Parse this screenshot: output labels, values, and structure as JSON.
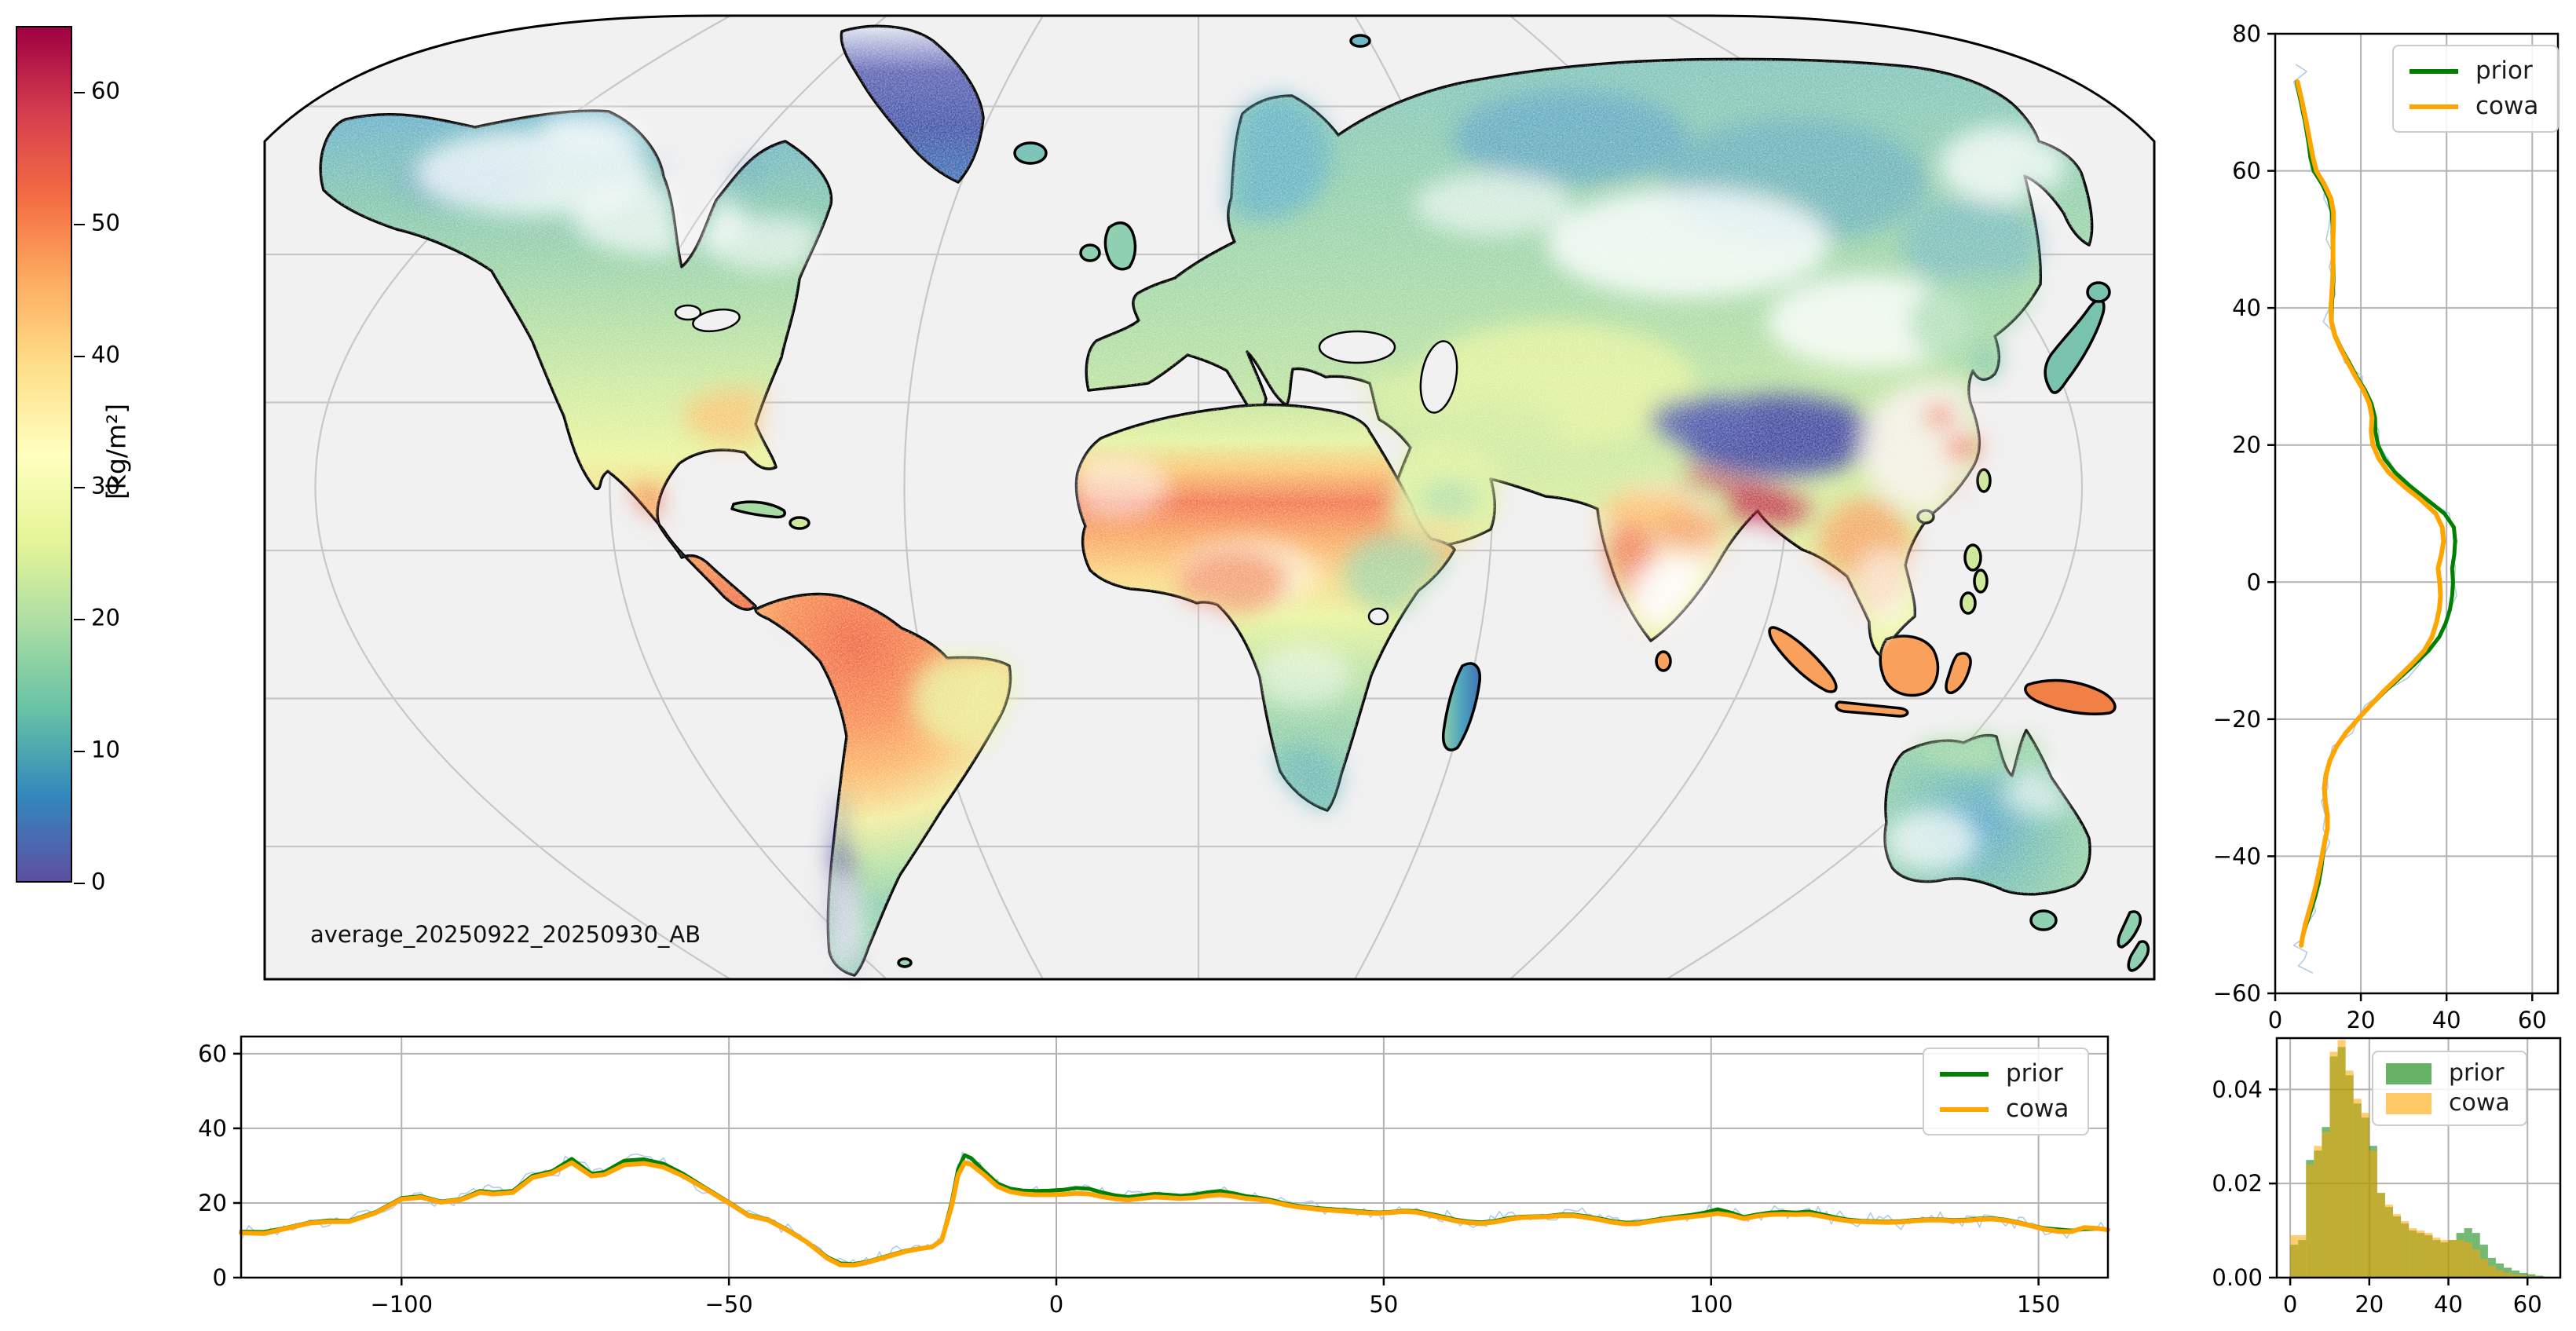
{
  "figure": {
    "background": "#ffffff"
  },
  "colors": {
    "prior": "#008000",
    "cowa": "#ffa500",
    "raw_overlay_line": "#a9c6e2",
    "grid": "#b2b2b2",
    "graticule": "#c7c7c7",
    "map_ocean": "#f1f1f1",
    "spine": "#000000",
    "legend_border": "#cccccc",
    "coastline": "#000000"
  },
  "colorbar": {
    "unit_label": "[kg/m²]",
    "vmin": 0,
    "vmax": 65,
    "ticks": [
      0,
      10,
      20,
      30,
      40,
      50,
      60
    ],
    "stops": [
      [
        0.0,
        "#5e4fa2"
      ],
      [
        0.1,
        "#3288bd"
      ],
      [
        0.2,
        "#66c2a5"
      ],
      [
        0.3,
        "#abdda4"
      ],
      [
        0.4,
        "#e6f598"
      ],
      [
        0.5,
        "#ffffbf"
      ],
      [
        0.6,
        "#fee08b"
      ],
      [
        0.7,
        "#fdae61"
      ],
      [
        0.8,
        "#f46d43"
      ],
      [
        0.9,
        "#d53e4f"
      ],
      [
        1.0,
        "#9e0142"
      ]
    ]
  },
  "map": {
    "annotation": "average_20250922_20250930_AB"
  },
  "chart_data": [
    {
      "id": "map",
      "type": "heatmap",
      "title": "",
      "description_visible_text": "average_20250922_20250930_AB",
      "value_unit": "[kg/m²]",
      "colormap_range": [
        0,
        65
      ],
      "legend_position": "colorbar left"
    },
    {
      "id": "lat_profile",
      "type": "line",
      "xlabel": "",
      "ylabel": "",
      "xlim": [
        0,
        66
      ],
      "ylim": [
        -60,
        80
      ],
      "xticks": [
        {
          "v": 0,
          "t": "0"
        },
        {
          "v": 20,
          "t": "20"
        },
        {
          "v": 40,
          "t": "40"
        },
        {
          "v": 60,
          "t": "60"
        }
      ],
      "yticks": [
        {
          "v": 80,
          "t": "80"
        },
        {
          "v": 60,
          "t": "60"
        },
        {
          "v": 40,
          "t": "40"
        },
        {
          "v": 20,
          "t": "20"
        },
        {
          "v": 0,
          "t": "0"
        },
        {
          "v": -20,
          "t": "−20"
        },
        {
          "v": -40,
          "t": "−40"
        },
        {
          "v": -60,
          "t": "−60"
        }
      ],
      "grid": true,
      "legend_position": "upper right",
      "columns": [
        "latitude",
        "prior",
        "cowa"
      ],
      "series": [
        {
          "name": "prior"
        },
        {
          "name": "cowa"
        }
      ],
      "points": [
        [
          73,
          5.0,
          5.2
        ],
        [
          70,
          6.0,
          6.3
        ],
        [
          67,
          7.0,
          7.3
        ],
        [
          64,
          7.8,
          8.2
        ],
        [
          62,
          8.2,
          8.8
        ],
        [
          60,
          9.0,
          9.6
        ],
        [
          58,
          11.0,
          11.5
        ],
        [
          56,
          12.5,
          13.0
        ],
        [
          54,
          13.2,
          13.6
        ],
        [
          52,
          13.4,
          13.6
        ],
        [
          50,
          13.4,
          13.5
        ],
        [
          48,
          13.5,
          13.5
        ],
        [
          46,
          13.6,
          13.5
        ],
        [
          44,
          13.6,
          13.4
        ],
        [
          42,
          13.4,
          13.2
        ],
        [
          40,
          13.2,
          13.0
        ],
        [
          38,
          13.2,
          13.1
        ],
        [
          36,
          14.0,
          13.9
        ],
        [
          34,
          15.5,
          15.3
        ],
        [
          32,
          17.3,
          17.0
        ],
        [
          30,
          19.0,
          18.7
        ],
        [
          28,
          21.0,
          20.6
        ],
        [
          26,
          22.5,
          22.0
        ],
        [
          24,
          23.3,
          22.6
        ],
        [
          22,
          23.4,
          22.4
        ],
        [
          20,
          24.0,
          22.8
        ],
        [
          18,
          25.5,
          24.2
        ],
        [
          16,
          28.0,
          26.5
        ],
        [
          14,
          31.5,
          30.0
        ],
        [
          12,
          35.5,
          34.0
        ],
        [
          10,
          39.5,
          37.5
        ],
        [
          8,
          41.7,
          39.0
        ],
        [
          6,
          42.0,
          39.3
        ],
        [
          4,
          41.8,
          38.8
        ],
        [
          2,
          41.3,
          38.0
        ],
        [
          0,
          41.5,
          38.4
        ],
        [
          -2,
          41.3,
          38.6
        ],
        [
          -4,
          40.8,
          38.3
        ],
        [
          -6,
          39.8,
          37.6
        ],
        [
          -8,
          38.3,
          36.6
        ],
        [
          -10,
          35.8,
          34.8
        ],
        [
          -12,
          32.5,
          31.8
        ],
        [
          -14,
          29.0,
          28.5
        ],
        [
          -16,
          25.5,
          25.2
        ],
        [
          -18,
          22.3,
          22.2
        ],
        [
          -20,
          19.3,
          19.3
        ],
        [
          -22,
          16.5,
          16.5
        ],
        [
          -24,
          14.3,
          14.3
        ],
        [
          -26,
          12.8,
          12.8
        ],
        [
          -28,
          11.8,
          11.9
        ],
        [
          -30,
          11.4,
          11.5
        ],
        [
          -32,
          11.6,
          11.7
        ],
        [
          -34,
          12.1,
          12.2
        ],
        [
          -36,
          12.2,
          12.2
        ],
        [
          -38,
          11.6,
          11.5
        ],
        [
          -40,
          11.1,
          10.9
        ],
        [
          -42,
          10.7,
          10.3
        ],
        [
          -44,
          10.1,
          9.6
        ],
        [
          -46,
          9.3,
          8.8
        ],
        [
          -48,
          8.3,
          7.9
        ],
        [
          -50,
          7.2,
          7.0
        ],
        [
          -52,
          6.3,
          6.3
        ],
        [
          -53,
          6.0,
          6.1
        ]
      ]
    },
    {
      "id": "lon_profile",
      "type": "line",
      "xlabel": "",
      "ylabel": "",
      "xlim": [
        -124.5,
        160.6
      ],
      "ylim": [
        0,
        64.6
      ],
      "xticks": [
        {
          "v": -100,
          "t": "−100"
        },
        {
          "v": -50,
          "t": "−50"
        },
        {
          "v": 0,
          "t": "0"
        },
        {
          "v": 50,
          "t": "50"
        },
        {
          "v": 100,
          "t": "100"
        },
        {
          "v": 150,
          "t": "150"
        }
      ],
      "yticks": [
        {
          "v": 0,
          "t": "0"
        },
        {
          "v": 20,
          "t": "20"
        },
        {
          "v": 40,
          "t": "40"
        },
        {
          "v": 60,
          "t": "60"
        }
      ],
      "grid": true,
      "legend_position": "upper right",
      "columns": [
        "longitude",
        "prior",
        "cowa"
      ],
      "series": [
        {
          "name": "prior"
        },
        {
          "name": "cowa"
        }
      ],
      "points": [
        [
          -124.5,
          12.3,
          12.0
        ],
        [
          -121,
          12.2,
          11.8
        ],
        [
          -118,
          13.2,
          13.0
        ],
        [
          -114,
          14.8,
          14.6
        ],
        [
          -111,
          15.3,
          15.0
        ],
        [
          -108,
          15.2,
          15.0
        ],
        [
          -104,
          17.5,
          17.3
        ],
        [
          -100,
          21.3,
          21.0
        ],
        [
          -97,
          21.8,
          21.5
        ],
        [
          -94,
          20.4,
          20.2
        ],
        [
          -91,
          21.0,
          20.8
        ],
        [
          -88,
          23.2,
          22.8
        ],
        [
          -86,
          22.8,
          22.4
        ],
        [
          -83,
          23.2,
          22.8
        ],
        [
          -80,
          27.3,
          26.8
        ],
        [
          -77,
          28.5,
          28.0
        ],
        [
          -74,
          31.8,
          30.8
        ],
        [
          -71,
          27.8,
          27.2
        ],
        [
          -69,
          28.3,
          27.6
        ],
        [
          -66,
          31.3,
          30.2
        ],
        [
          -63,
          31.7,
          30.6
        ],
        [
          -60,
          30.5,
          29.6
        ],
        [
          -57,
          27.8,
          27.2
        ],
        [
          -54,
          24.5,
          24.2
        ],
        [
          -50,
          20.2,
          20.0
        ],
        [
          -47,
          16.8,
          16.6
        ],
        [
          -44,
          15.6,
          15.4
        ],
        [
          -41,
          12.8,
          12.6
        ],
        [
          -38,
          9.5,
          9.4
        ],
        [
          -35,
          5.5,
          5.2
        ],
        [
          -33,
          3.8,
          3.4
        ],
        [
          -31,
          3.6,
          3.3
        ],
        [
          -29,
          4.2,
          4.0
        ],
        [
          -27,
          5.2,
          5.0
        ],
        [
          -25,
          6.2,
          6.0
        ],
        [
          -23,
          7.2,
          7.0
        ],
        [
          -21,
          7.8,
          7.7
        ],
        [
          -19,
          8.3,
          8.2
        ],
        [
          -17.5,
          10.0,
          10.0
        ],
        [
          -16,
          20.0,
          19.0
        ],
        [
          -15,
          29.0,
          27.5
        ],
        [
          -14,
          32.8,
          30.8
        ],
        [
          -13,
          32.0,
          30.3
        ],
        [
          -11,
          28.5,
          27.5
        ],
        [
          -9,
          25.2,
          24.4
        ],
        [
          -7,
          23.8,
          23.0
        ],
        [
          -5,
          23.3,
          22.4
        ],
        [
          -3,
          23.2,
          22.2
        ],
        [
          -1,
          23.3,
          22.2
        ],
        [
          1,
          23.5,
          22.3
        ],
        [
          3,
          24.0,
          22.6
        ],
        [
          5,
          23.8,
          22.4
        ],
        [
          7,
          22.8,
          21.7
        ],
        [
          9,
          22.0,
          21.1
        ],
        [
          11,
          21.6,
          20.8
        ],
        [
          13,
          22.0,
          21.2
        ],
        [
          15,
          22.4,
          21.6
        ],
        [
          17,
          22.2,
          21.4
        ],
        [
          19,
          21.9,
          21.2
        ],
        [
          21,
          22.2,
          21.4
        ],
        [
          23,
          22.8,
          21.9
        ],
        [
          25,
          23.2,
          22.2
        ],
        [
          27,
          22.6,
          21.8
        ],
        [
          29,
          21.8,
          21.2
        ],
        [
          31,
          21.4,
          20.9
        ],
        [
          33,
          20.7,
          20.3
        ],
        [
          35,
          19.8,
          19.5
        ],
        [
          37,
          19.2,
          18.9
        ],
        [
          40,
          18.6,
          18.3
        ],
        [
          43,
          18.2,
          17.9
        ],
        [
          46,
          17.8,
          17.5
        ],
        [
          49,
          17.4,
          17.2
        ],
        [
          51,
          17.6,
          17.4
        ],
        [
          53,
          17.9,
          17.7
        ],
        [
          55,
          17.8,
          17.5
        ],
        [
          57,
          17.1,
          16.8
        ],
        [
          59,
          16.3,
          16.0
        ],
        [
          61,
          15.5,
          15.2
        ],
        [
          63,
          15.0,
          14.7
        ],
        [
          65,
          14.8,
          14.5
        ],
        [
          67,
          15.2,
          14.9
        ],
        [
          69,
          15.9,
          15.6
        ],
        [
          71,
          16.3,
          16.1
        ],
        [
          73,
          16.4,
          16.2
        ],
        [
          75,
          16.5,
          16.3
        ],
        [
          77,
          16.9,
          16.6
        ],
        [
          79,
          16.9,
          16.6
        ],
        [
          81,
          16.4,
          16.1
        ],
        [
          83,
          15.8,
          15.5
        ],
        [
          85,
          15.1,
          14.8
        ],
        [
          87,
          14.7,
          14.4
        ],
        [
          89,
          14.8,
          14.5
        ],
        [
          91,
          15.4,
          15.1
        ],
        [
          93,
          15.9,
          15.6
        ],
        [
          95,
          16.4,
          16.0
        ],
        [
          97,
          16.8,
          16.3
        ],
        [
          99,
          17.4,
          16.7
        ],
        [
          101,
          18.3,
          17.2
        ],
        [
          103,
          17.4,
          16.7
        ],
        [
          105,
          16.2,
          15.8
        ],
        [
          107,
          16.9,
          16.5
        ],
        [
          109,
          17.4,
          16.9
        ],
        [
          111,
          17.6,
          17.0
        ],
        [
          113,
          17.4,
          16.9
        ],
        [
          115,
          17.7,
          17.0
        ],
        [
          117,
          16.9,
          16.4
        ],
        [
          119,
          16.1,
          15.7
        ],
        [
          121,
          15.5,
          15.2
        ],
        [
          123,
          15.2,
          15.0
        ],
        [
          125,
          15.1,
          14.9
        ],
        [
          127,
          15.0,
          14.8
        ],
        [
          129,
          15.1,
          14.9
        ],
        [
          131,
          15.4,
          15.2
        ],
        [
          133,
          15.6,
          15.4
        ],
        [
          135,
          15.6,
          15.4
        ],
        [
          137,
          15.4,
          15.2
        ],
        [
          139,
          15.5,
          15.3
        ],
        [
          141,
          15.8,
          15.6
        ],
        [
          143,
          15.9,
          15.7
        ],
        [
          145,
          15.5,
          15.3
        ],
        [
          147,
          14.8,
          14.6
        ],
        [
          149,
          13.9,
          13.8
        ],
        [
          151,
          13.2,
          12.9
        ],
        [
          153,
          12.9,
          12.4
        ],
        [
          155,
          12.6,
          12.3
        ],
        [
          157,
          13.0,
          13.4
        ],
        [
          159,
          13.1,
          13.2
        ],
        [
          160.6,
          12.9,
          12.8
        ]
      ]
    },
    {
      "id": "histogram",
      "type": "bar",
      "xlabel": "",
      "ylabel": "",
      "xlim": [
        -3.4,
        68.3
      ],
      "ylim": [
        0,
        0.0509
      ],
      "bin_start": 0,
      "bin_width": 2,
      "xticks": [
        {
          "v": 0,
          "t": "0"
        },
        {
          "v": 20,
          "t": "20"
        },
        {
          "v": 40,
          "t": "40"
        },
        {
          "v": 60,
          "t": "60"
        }
      ],
      "yticks": [
        {
          "v": 0,
          "t": "0.00"
        },
        {
          "v": 0.02,
          "t": "0.02"
        },
        {
          "v": 0.04,
          "t": "0.04"
        }
      ],
      "grid": true,
      "legend_position": "upper right",
      "series": [
        {
          "name": "prior",
          "values": [
            0.007,
            0.008,
            0.025,
            0.027,
            0.032,
            0.047,
            0.049,
            0.043,
            0.037,
            0.034,
            0.028,
            0.018,
            0.015,
            0.013,
            0.0115,
            0.01,
            0.0095,
            0.009,
            0.008,
            0.0075,
            0.008,
            0.0095,
            0.0105,
            0.0095,
            0.007,
            0.0042,
            0.003,
            0.0021,
            0.0015,
            0.001,
            0.0007,
            0.0004,
            0.0002
          ]
        },
        {
          "name": "cowa",
          "values": [
            0.009,
            0.009,
            0.024,
            0.028,
            0.031,
            0.048,
            0.0505,
            0.044,
            0.038,
            0.035,
            0.027,
            0.018,
            0.0155,
            0.0135,
            0.012,
            0.0105,
            0.01,
            0.0095,
            0.0085,
            0.008,
            0.008,
            0.008,
            0.0075,
            0.006,
            0.004,
            0.0025,
            0.0016,
            0.001,
            0.0007,
            0.0005,
            0.0003,
            0.0002,
            0.0001
          ]
        }
      ]
    }
  ],
  "legends": {
    "prior_label": "prior",
    "cowa_label": "cowa"
  }
}
